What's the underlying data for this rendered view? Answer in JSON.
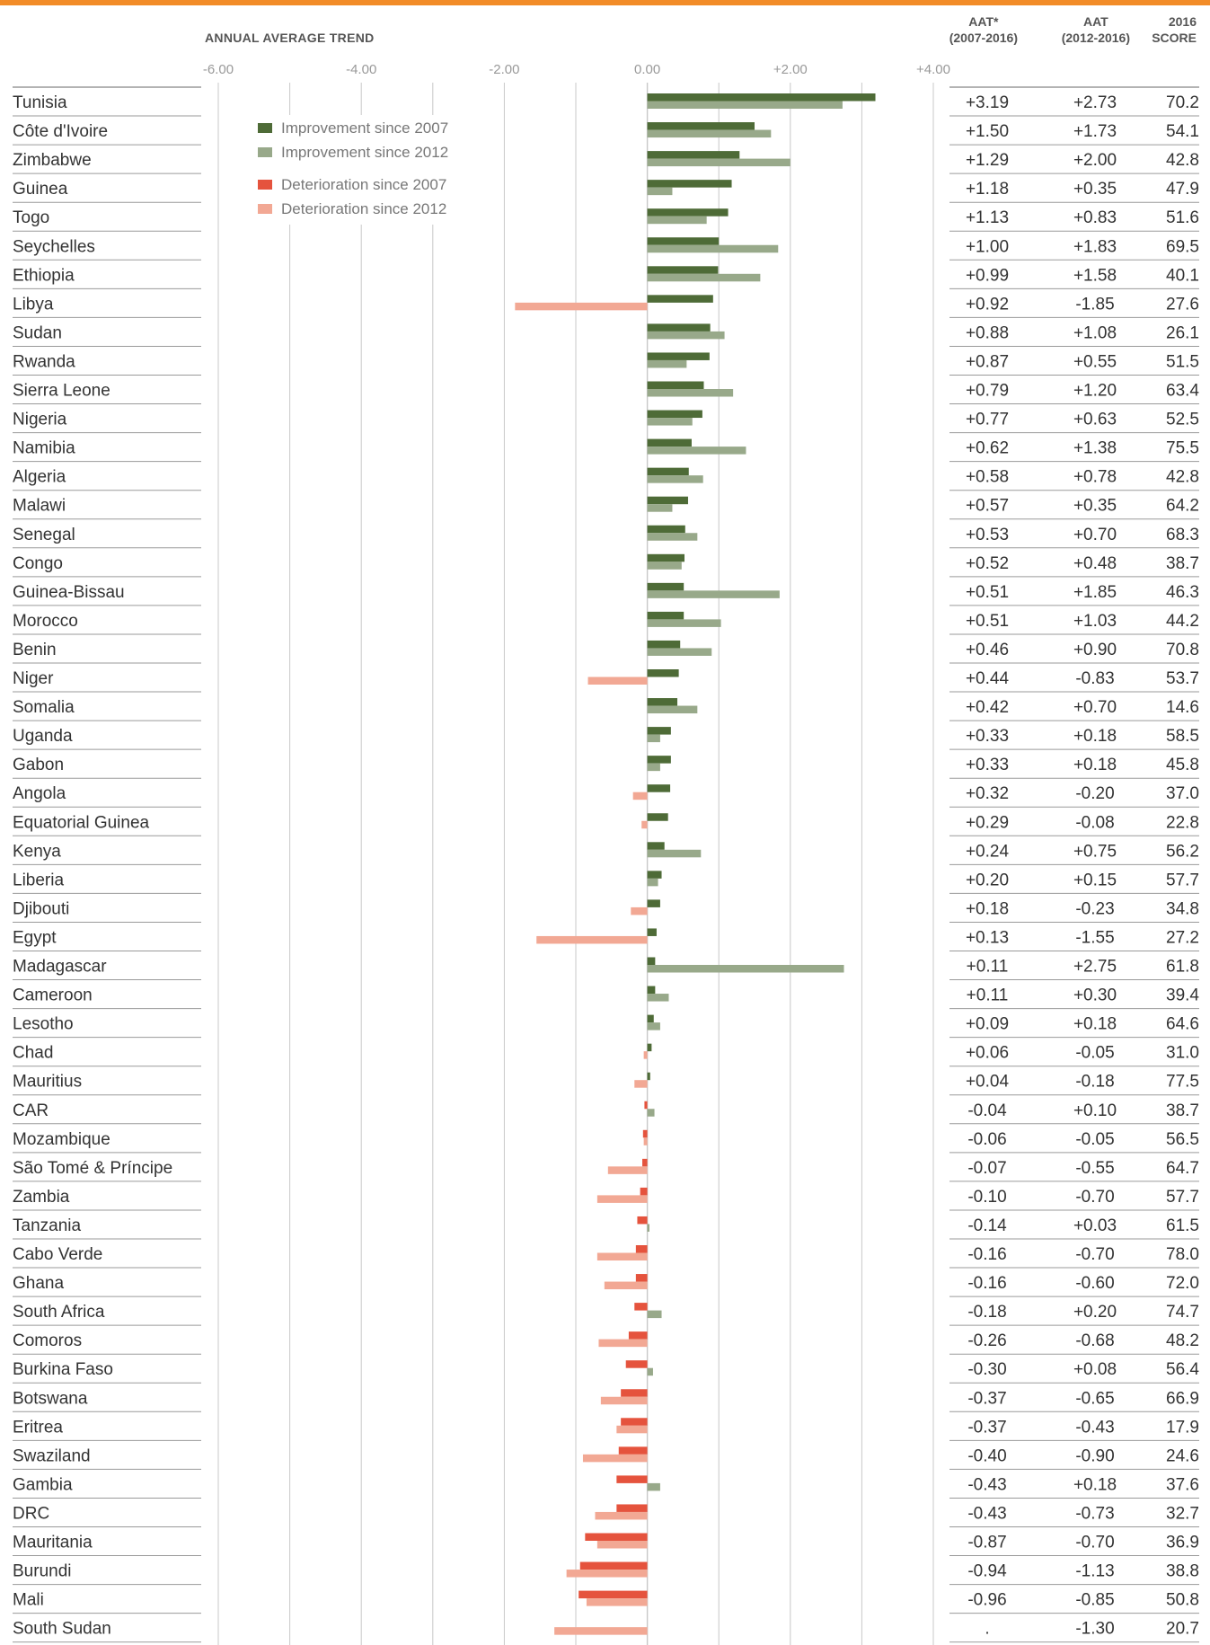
{
  "colors": {
    "accent_top": "#f28c28",
    "improve_2007": "#4e6b37",
    "improve_2012": "#98a98a",
    "deter_2007": "#e5533d",
    "deter_2012": "#f2a894",
    "grid": "#c8c8c8",
    "row_rule": "#9a9a9a"
  },
  "header": {
    "title": "ANNUAL AVERAGE TREND",
    "col1_line1": "AAT*",
    "col1_line2": "(2007-2016)",
    "col2_line1": "AAT",
    "col2_line2": "(2012-2016)",
    "col3_line1": "2016",
    "col3_line2": "SCORE"
  },
  "chart_data": {
    "type": "bar",
    "orientation": "horizontal",
    "xlim": [
      -6,
      4
    ],
    "x_ticks": [
      "-6.00",
      "-4.00",
      "-2.00",
      "0.00",
      "+2.00",
      "+4.00"
    ],
    "tick_values": [
      -6,
      -4,
      -2,
      0,
      2,
      4
    ],
    "grid": true,
    "legend_position": "upper-left inside plot",
    "legend": [
      {
        "label": "Improvement since 2007",
        "color": "#4e6b37"
      },
      {
        "label": "Improvement since 2012",
        "color": "#98a98a"
      },
      {
        "label": "Deterioration since 2007",
        "color": "#e5533d"
      },
      {
        "label": "Deterioration since 2012",
        "color": "#f2a894"
      }
    ],
    "categories": [
      "Tunisia",
      "Côte d'Ivoire",
      "Zimbabwe",
      "Guinea",
      "Togo",
      "Seychelles",
      "Ethiopia",
      "Libya",
      "Sudan",
      "Rwanda",
      "Sierra Leone",
      "Nigeria",
      "Namibia",
      "Algeria",
      "Malawi",
      "Senegal",
      "Congo",
      "Guinea-Bissau",
      "Morocco",
      "Benin",
      "Niger",
      "Somalia",
      "Uganda",
      "Gabon",
      "Angola",
      "Equatorial Guinea",
      "Kenya",
      "Liberia",
      "Djibouti",
      "Egypt",
      "Madagascar",
      "Cameroon",
      "Lesotho",
      "Chad",
      "Mauritius",
      "CAR",
      "Mozambique",
      "São Tomé & Príncipe",
      "Zambia",
      "Tanzania",
      "Cabo Verde",
      "Ghana",
      "South Africa",
      "Comoros",
      "Burkina Faso",
      "Botswana",
      "Eritrea",
      "Swaziland",
      "Gambia",
      "DRC",
      "Mauritania",
      "Burundi",
      "Mali",
      "South Sudan"
    ],
    "series": [
      {
        "name": "AAT* (2007-2016)",
        "values": [
          3.19,
          1.5,
          1.29,
          1.18,
          1.13,
          1.0,
          0.99,
          0.92,
          0.88,
          0.87,
          0.79,
          0.77,
          0.62,
          0.58,
          0.57,
          0.53,
          0.52,
          0.51,
          0.51,
          0.46,
          0.44,
          0.42,
          0.33,
          0.33,
          0.32,
          0.29,
          0.24,
          0.2,
          0.18,
          0.13,
          0.11,
          0.11,
          0.09,
          0.06,
          0.04,
          -0.04,
          -0.06,
          -0.07,
          -0.1,
          -0.14,
          -0.16,
          -0.16,
          -0.18,
          -0.26,
          -0.3,
          -0.37,
          -0.37,
          -0.4,
          -0.43,
          -0.43,
          -0.87,
          -0.94,
          -0.96,
          null
        ]
      },
      {
        "name": "AAT (2012-2016)",
        "values": [
          2.73,
          1.73,
          2.0,
          0.35,
          0.83,
          1.83,
          1.58,
          -1.85,
          1.08,
          0.55,
          1.2,
          0.63,
          1.38,
          0.78,
          0.35,
          0.7,
          0.48,
          1.85,
          1.03,
          0.9,
          -0.83,
          0.7,
          0.18,
          0.18,
          -0.2,
          -0.08,
          0.75,
          0.15,
          -0.23,
          -1.55,
          2.75,
          0.3,
          0.18,
          -0.05,
          -0.18,
          0.1,
          -0.05,
          -0.55,
          -0.7,
          0.03,
          -0.7,
          -0.6,
          0.2,
          -0.68,
          0.08,
          -0.65,
          -0.43,
          -0.9,
          0.18,
          -0.73,
          -0.7,
          -1.13,
          -0.85,
          -1.3
        ]
      }
    ],
    "table": {
      "aat_2007": [
        "+3.19",
        "+1.50",
        "+1.29",
        "+1.18",
        "+1.13",
        "+1.00",
        "+0.99",
        "+0.92",
        "+0.88",
        "+0.87",
        "+0.79",
        "+0.77",
        "+0.62",
        "+0.58",
        "+0.57",
        "+0.53",
        "+0.52",
        "+0.51",
        "+0.51",
        "+0.46",
        "+0.44",
        "+0.42",
        "+0.33",
        "+0.33",
        "+0.32",
        "+0.29",
        "+0.24",
        "+0.20",
        "+0.18",
        "+0.13",
        "+0.11",
        "+0.11",
        "+0.09",
        "+0.06",
        "+0.04",
        "-0.04",
        "-0.06",
        "-0.07",
        "-0.10",
        "-0.14",
        "-0.16",
        "-0.16",
        "-0.18",
        "-0.26",
        "-0.30",
        "-0.37",
        "-0.37",
        "-0.40",
        "-0.43",
        "-0.43",
        "-0.87",
        "-0.94",
        "-0.96",
        "."
      ],
      "aat_2012": [
        "+2.73",
        "+1.73",
        "+2.00",
        "+0.35",
        "+0.83",
        "+1.83",
        "+1.58",
        "-1.85",
        "+1.08",
        "+0.55",
        "+1.20",
        "+0.63",
        "+1.38",
        "+0.78",
        "+0.35",
        "+0.70",
        "+0.48",
        "+1.85",
        "+1.03",
        "+0.90",
        "-0.83",
        "+0.70",
        "+0.18",
        "+0.18",
        "-0.20",
        "-0.08",
        "+0.75",
        "+0.15",
        "-0.23",
        "-1.55",
        "+2.75",
        "+0.30",
        "+0.18",
        "-0.05",
        "-0.18",
        "+0.10",
        "-0.05",
        "-0.55",
        "-0.70",
        "+0.03",
        "-0.70",
        "-0.60",
        "+0.20",
        "-0.68",
        "+0.08",
        "-0.65",
        "-0.43",
        "-0.90",
        "+0.18",
        "-0.73",
        "-0.70",
        "-1.13",
        "-0.85",
        "-1.30"
      ],
      "score_2016": [
        "70.2",
        "54.1",
        "42.8",
        "47.9",
        "51.6",
        "69.5",
        "40.1",
        "27.6",
        "26.1",
        "51.5",
        "63.4",
        "52.5",
        "75.5",
        "42.8",
        "64.2",
        "68.3",
        "38.7",
        "46.3",
        "44.2",
        "70.8",
        "53.7",
        "14.6",
        "58.5",
        "45.8",
        "37.0",
        "22.8",
        "56.2",
        "57.7",
        "34.8",
        "27.2",
        "61.8",
        "39.4",
        "64.6",
        "31.0",
        "77.5",
        "38.7",
        "56.5",
        "64.7",
        "57.7",
        "61.5",
        "78.0",
        "72.0",
        "74.7",
        "48.2",
        "56.4",
        "66.9",
        "17.9",
        "24.6",
        "37.6",
        "32.7",
        "36.9",
        "38.8",
        "50.8",
        "20.7"
      ]
    }
  }
}
